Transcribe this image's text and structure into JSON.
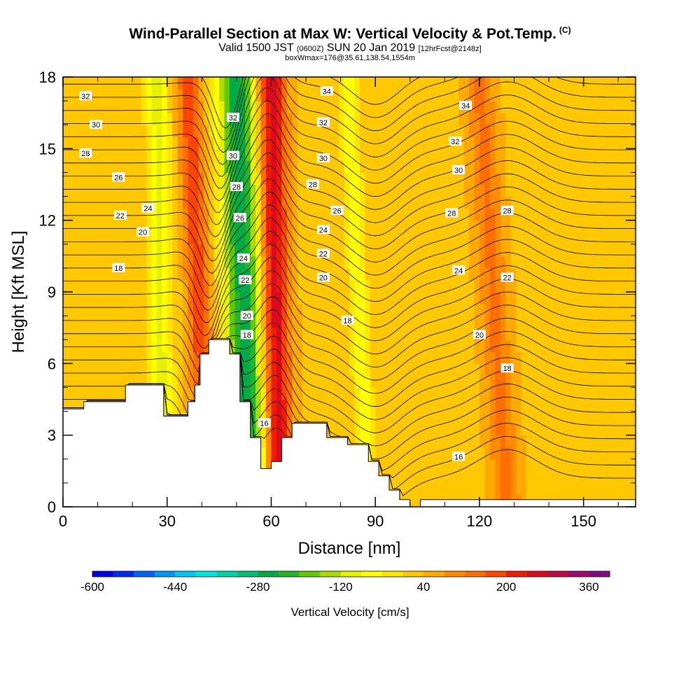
{
  "title": {
    "main": "Wind-Parallel Section at Max W: Vertical Velocity & Pot.Temp.",
    "copyright": "(C)",
    "valid_prefix": "Valid 1500 JST",
    "valid_utc": "(0600Z)",
    "valid_date": "SUN 20 Jan 2019",
    "forecast": "[12hrFcst@2148z]",
    "box": "boxWmax=176@35.61,138.54,1554m"
  },
  "chart_data": {
    "type": "heatmap",
    "xlabel": "Distance [nm]",
    "ylabel": "Height [Kft MSL]",
    "xlim": [
      0,
      165
    ],
    "ylim": [
      0,
      18
    ],
    "xticks": [
      0,
      30,
      60,
      90,
      120,
      150
    ],
    "yticks": [
      0,
      3,
      6,
      9,
      12,
      15,
      18
    ],
    "colorbar": {
      "label": "Vertical Velocity [cm/s]",
      "min": -600,
      "max": 400,
      "step": 40,
      "tick_labels": [
        -600,
        -440,
        -280,
        -120,
        40,
        200,
        360
      ],
      "colors": [
        "#0000e6",
        "#0028f0",
        "#0064f5",
        "#0096f5",
        "#00c8f0",
        "#00e6dc",
        "#00d2aa",
        "#00be78",
        "#00aa46",
        "#28b428",
        "#64c800",
        "#aadc00",
        "#e6f000",
        "#ffff00",
        "#ffe600",
        "#ffc800",
        "#ffaa00",
        "#ff8c00",
        "#ff6e00",
        "#ff4600",
        "#f01e00",
        "#dc0a1e",
        "#be0a46",
        "#a00a6e",
        "#820a82"
      ]
    },
    "vertical_velocity_bands": [
      {
        "x_at_top": 27,
        "x_at_bottom": 29,
        "width": 5,
        "value": -120
      },
      {
        "x_at_top": 36,
        "x_at_bottom": 42,
        "width": 5,
        "value": 160
      },
      {
        "x_at_top": 50,
        "x_at_bottom": 54,
        "width": 8,
        "value": -300
      },
      {
        "x_at_top": 60,
        "x_at_bottom": 62,
        "width": 6,
        "value": 240
      },
      {
        "x_at_top": 82,
        "x_at_bottom": 88,
        "width": 4,
        "value": -100
      },
      {
        "x_at_top": 120,
        "x_at_bottom": 128,
        "width": 6,
        "value": 100
      }
    ],
    "terrain": [
      {
        "x": 0,
        "h": 4.1
      },
      {
        "x": 6,
        "h": 4.1
      },
      {
        "x": 6,
        "h": 4.4
      },
      {
        "x": 18,
        "h": 4.4
      },
      {
        "x": 18,
        "h": 5.1
      },
      {
        "x": 29,
        "h": 5.1
      },
      {
        "x": 29,
        "h": 3.8
      },
      {
        "x": 36,
        "h": 3.8
      },
      {
        "x": 36,
        "h": 4.4
      },
      {
        "x": 38,
        "h": 4.4
      },
      {
        "x": 38,
        "h": 5.1
      },
      {
        "x": 39.5,
        "h": 5.1
      },
      {
        "x": 39.5,
        "h": 6.4
      },
      {
        "x": 42,
        "h": 6.4
      },
      {
        "x": 42,
        "h": 7.0
      },
      {
        "x": 48,
        "h": 7.0
      },
      {
        "x": 48,
        "h": 6.4
      },
      {
        "x": 51,
        "h": 6.4
      },
      {
        "x": 51,
        "h": 4.4
      },
      {
        "x": 54,
        "h": 4.4
      },
      {
        "x": 54,
        "h": 2.9
      },
      {
        "x": 57,
        "h": 2.9
      },
      {
        "x": 57,
        "h": 1.6
      },
      {
        "x": 60,
        "h": 1.6
      },
      {
        "x": 60,
        "h": 1.9
      },
      {
        "x": 63,
        "h": 1.9
      },
      {
        "x": 63,
        "h": 2.9
      },
      {
        "x": 66,
        "h": 2.9
      },
      {
        "x": 66,
        "h": 3.5
      },
      {
        "x": 76,
        "h": 3.5
      },
      {
        "x": 76,
        "h": 2.9
      },
      {
        "x": 82,
        "h": 2.9
      },
      {
        "x": 82,
        "h": 2.6
      },
      {
        "x": 88,
        "h": 2.6
      },
      {
        "x": 88,
        "h": 1.9
      },
      {
        "x": 91,
        "h": 1.9
      },
      {
        "x": 91,
        "h": 1.3
      },
      {
        "x": 94,
        "h": 1.3
      },
      {
        "x": 94,
        "h": 0.7
      },
      {
        "x": 97,
        "h": 0.7
      },
      {
        "x": 97,
        "h": 0.3
      },
      {
        "x": 100,
        "h": 0.3
      },
      {
        "x": 100,
        "h": 0.0
      },
      {
        "x": 103,
        "h": 0.0
      },
      {
        "x": 103,
        "h": 0.3
      },
      {
        "x": 165,
        "h": 0.3
      }
    ],
    "potential_temperature_labels": [
      {
        "text": "32",
        "x": 6.5,
        "y": 17.2
      },
      {
        "text": "30",
        "x": 9.5,
        "y": 16.0
      },
      {
        "text": "28",
        "x": 6.5,
        "y": 14.8
      },
      {
        "text": "26",
        "x": 16,
        "y": 13.8
      },
      {
        "text": "24",
        "x": 24.5,
        "y": 12.5
      },
      {
        "text": "22",
        "x": 16.5,
        "y": 12.2
      },
      {
        "text": "20",
        "x": 23,
        "y": 11.5
      },
      {
        "text": "18",
        "x": 16,
        "y": 10.0
      },
      {
        "text": "32",
        "x": 49,
        "y": 16.3
      },
      {
        "text": "30",
        "x": 49,
        "y": 14.7
      },
      {
        "text": "28",
        "x": 50,
        "y": 13.4
      },
      {
        "text": "26",
        "x": 51,
        "y": 12.1
      },
      {
        "text": "24",
        "x": 52,
        "y": 10.4
      },
      {
        "text": "22",
        "x": 52.5,
        "y": 9.5
      },
      {
        "text": "20",
        "x": 53,
        "y": 8.0
      },
      {
        "text": "18",
        "x": 53,
        "y": 7.2
      },
      {
        "text": "16",
        "x": 58,
        "y": 3.5
      },
      {
        "text": "34",
        "x": 76,
        "y": 17.4
      },
      {
        "text": "32",
        "x": 75,
        "y": 16.1
      },
      {
        "text": "30",
        "x": 75,
        "y": 14.6
      },
      {
        "text": "28",
        "x": 72,
        "y": 13.5
      },
      {
        "text": "26",
        "x": 79,
        "y": 12.4
      },
      {
        "text": "24",
        "x": 75,
        "y": 11.6
      },
      {
        "text": "22",
        "x": 75,
        "y": 10.6
      },
      {
        "text": "20",
        "x": 75,
        "y": 9.6
      },
      {
        "text": "18",
        "x": 82,
        "y": 7.8
      },
      {
        "text": "34",
        "x": 116,
        "y": 16.8
      },
      {
        "text": "32",
        "x": 113,
        "y": 15.3
      },
      {
        "text": "30",
        "x": 114,
        "y": 14.1
      },
      {
        "text": "28",
        "x": 112,
        "y": 12.3
      },
      {
        "text": "28",
        "x": 128,
        "y": 12.4
      },
      {
        "text": "24",
        "x": 114,
        "y": 9.9
      },
      {
        "text": "22",
        "x": 128,
        "y": 9.6
      },
      {
        "text": "20",
        "x": 120,
        "y": 7.2
      },
      {
        "text": "18",
        "x": 128,
        "y": 5.8
      },
      {
        "text": "16",
        "x": 114,
        "y": 2.1
      }
    ]
  }
}
